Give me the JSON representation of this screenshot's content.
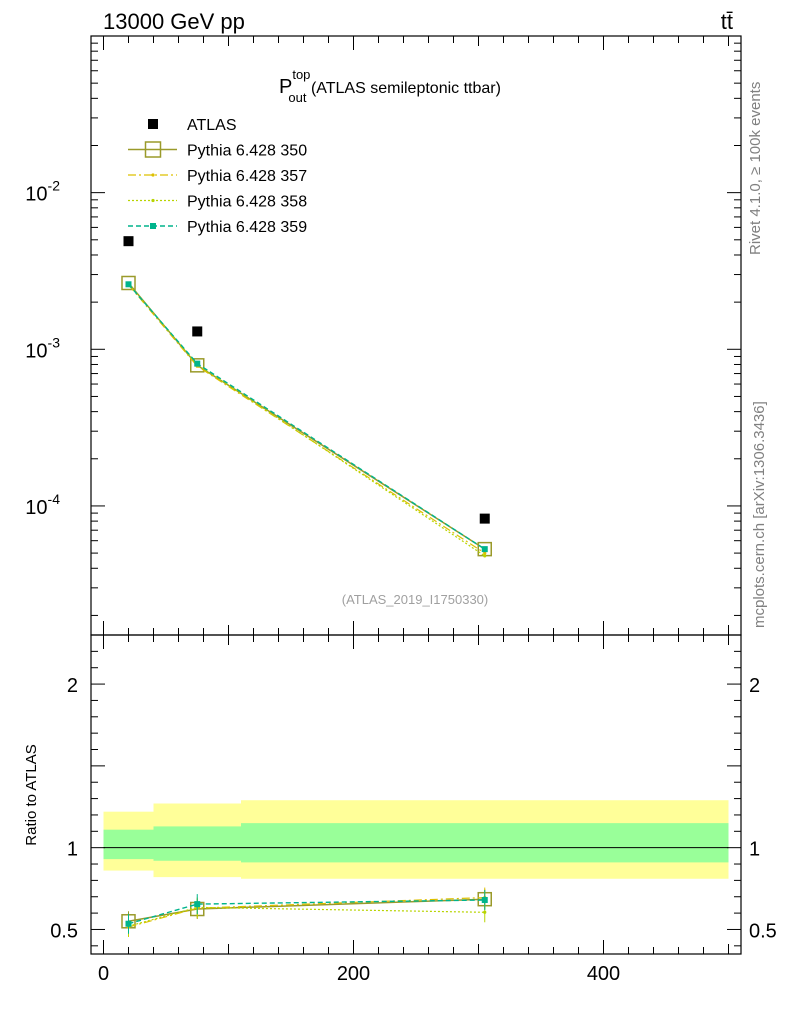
{
  "header": {
    "left": "13000 GeV pp",
    "right": "tt̄"
  },
  "side": {
    "rivet": "Rivet 4.1.0, ≥ 100k events",
    "mcplots": "mcplots.cern.ch [arXiv:1306.3436]"
  },
  "colors": {
    "atlas": "#000000",
    "p350": "#9a9a2a",
    "p357": "#ddc000",
    "p358": "#b8d400",
    "p359": "#00b48c",
    "band_inner": "#99ff99",
    "band_outer": "#ffff99"
  },
  "chart_data": [
    {
      "type": "scatter",
      "title": "P_out^top (ATLAS semileptonic ttbar)",
      "title_main": "P",
      "title_sup": "top",
      "title_sub": "out",
      "title_rest": " (ATLAS semileptonic ttbar)",
      "analysis": "(ATLAS_2019_I1750330)",
      "yscale": "log",
      "ylim": [
        1.5e-05,
        0.1
      ],
      "xlim": [
        -10,
        510
      ],
      "ytick_labels": [
        {
          "base": "10",
          "exp": "-2",
          "value": 0.01
        },
        {
          "base": "10",
          "exp": "-3",
          "value": 0.001
        },
        {
          "base": "10",
          "exp": "-4",
          "value": 0.0001
        }
      ],
      "legend": [
        "ATLAS",
        "Pythia 6.428 350",
        "Pythia 6.428 357",
        "Pythia 6.428 358",
        "Pythia 6.428 359"
      ],
      "series": [
        {
          "name": "ATLAS",
          "key": "atlas",
          "x": [
            20,
            75,
            305
          ],
          "y": [
            0.0049,
            0.0013,
            8.3e-05
          ]
        },
        {
          "name": "Pythia 6.428 350",
          "key": "p350",
          "x": [
            20,
            75,
            305
          ],
          "y": [
            0.00265,
            0.00079,
            5.3e-05
          ]
        },
        {
          "name": "Pythia 6.428 357",
          "key": "p357",
          "x": [
            20,
            75,
            305
          ],
          "y": [
            0.00258,
            0.00078,
            5e-05
          ]
        },
        {
          "name": "Pythia 6.428 358",
          "key": "p358",
          "x": [
            20,
            75,
            305
          ],
          "y": [
            0.00262,
            0.0008,
            4.8e-05
          ]
        },
        {
          "name": "Pythia 6.428 359",
          "key": "p359",
          "x": [
            20,
            75,
            305
          ],
          "y": [
            0.0026,
            0.00081,
            5.3e-05
          ]
        }
      ]
    },
    {
      "type": "line",
      "ylabel": "Ratio to ATLAS",
      "ylim": [
        0.35,
        2.3
      ],
      "xlim": [
        -10,
        510
      ],
      "ytick_labels": [
        {
          "label": "2",
          "value": 2
        },
        {
          "label": "1",
          "value": 1
        },
        {
          "label": "0.5",
          "value": 0.5
        }
      ],
      "xtick_labels": [
        {
          "label": "0",
          "value": 0
        },
        {
          "label": "200",
          "value": 200
        },
        {
          "label": "400",
          "value": 400
        }
      ],
      "bands": [
        {
          "x0": 0,
          "x1": 40,
          "inner": [
            0.93,
            1.11
          ],
          "outer": [
            0.86,
            1.22
          ]
        },
        {
          "x0": 40,
          "x1": 110,
          "inner": [
            0.92,
            1.13
          ],
          "outer": [
            0.82,
            1.27
          ]
        },
        {
          "x0": 110,
          "x1": 500,
          "inner": [
            0.91,
            1.15
          ],
          "outer": [
            0.81,
            1.29
          ]
        }
      ],
      "series": [
        {
          "name": "Pythia 6.428 350",
          "key": "p350",
          "x": [
            20,
            75,
            305
          ],
          "y": [
            0.55,
            0.625,
            0.685
          ]
        },
        {
          "name": "Pythia 6.428 357",
          "key": "p357",
          "x": [
            20,
            75,
            305
          ],
          "y": [
            0.515,
            0.63,
            0.695
          ]
        },
        {
          "name": "Pythia 6.428 358",
          "key": "p358",
          "x": [
            20,
            75,
            305
          ],
          "y": [
            0.52,
            0.635,
            0.605
          ]
        },
        {
          "name": "Pythia 6.428 359",
          "key": "p359",
          "x": [
            20,
            75,
            305
          ],
          "y": [
            0.535,
            0.655,
            0.68
          ]
        }
      ]
    }
  ]
}
